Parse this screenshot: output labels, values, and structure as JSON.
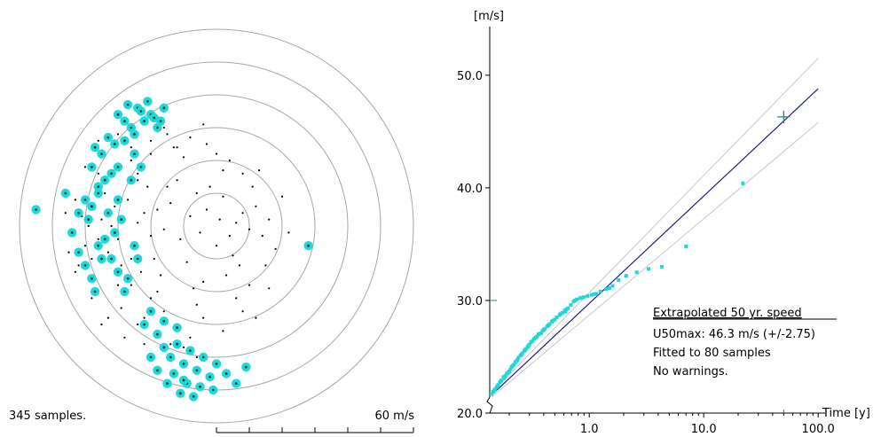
{
  "chart_data": [
    {
      "type": "scatter",
      "subtype": "polar",
      "status_label": "345 samples.",
      "scale_label": "60 m/s",
      "ring_step": 10,
      "ring_count": 6,
      "max_radius": 60,
      "series": [
        {
          "color": "#000000",
          "points": [
            [
              1,
              2
            ],
            [
              4,
              -3
            ],
            [
              -3,
              5
            ],
            [
              6,
              1
            ],
            [
              0,
              -6
            ],
            [
              8,
              4
            ],
            [
              -5,
              -2
            ],
            [
              2,
              9
            ],
            [
              10,
              -1
            ],
            [
              -8,
              3
            ],
            [
              5,
              -9
            ],
            [
              -2,
              12
            ],
            [
              12,
              6
            ],
            [
              -11,
              -4
            ],
            [
              7,
              -12
            ],
            [
              14,
              -3
            ],
            [
              -6,
              10
            ],
            [
              3,
              -15
            ],
            [
              -14,
              7
            ],
            [
              16,
              2
            ],
            [
              -9,
              -11
            ],
            [
              11,
              12
            ],
            [
              -16,
              -1
            ],
            [
              2,
              17
            ],
            [
              -4,
              -17
            ],
            [
              18,
              -7
            ],
            [
              -18,
              5
            ],
            [
              8,
              16
            ],
            [
              -12,
              14
            ],
            [
              15,
              -12
            ],
            [
              -20,
              -3
            ],
            [
              4,
              20
            ],
            [
              -7,
              -19
            ],
            [
              20,
              9
            ],
            [
              -15,
              12
            ],
            [
              10,
              -18
            ],
            [
              -22,
              4
            ],
            [
              0,
              22
            ],
            [
              -19,
              -10
            ],
            [
              13,
              17
            ],
            [
              -24,
              1
            ],
            [
              6,
              -22
            ],
            [
              -17,
              -15
            ],
            [
              22,
              -2
            ],
            [
              -10,
              21
            ],
            [
              -25,
              -6
            ],
            [
              -3,
              25
            ],
            [
              -21,
              12
            ],
            [
              16,
              -19
            ],
            [
              -26,
              -10
            ],
            [
              -6,
              -24
            ],
            [
              -28,
              2
            ],
            [
              -13,
              24
            ],
            [
              -23,
              -14
            ],
            [
              8,
              -26
            ],
            [
              -27,
              8
            ],
            [
              -18,
              -20
            ],
            [
              -30,
              -4
            ],
            [
              -4,
              -28
            ],
            [
              -24,
              16
            ],
            [
              -29,
              -12
            ],
            [
              12,
              -28
            ],
            [
              -32,
              0
            ],
            [
              -8,
              27
            ],
            [
              -26,
              -18
            ],
            [
              -31,
              6
            ],
            [
              -16,
              -26
            ],
            [
              -33,
              -8
            ],
            [
              -20,
              22
            ],
            [
              -12,
              -30
            ],
            [
              -35,
              2
            ],
            [
              -28,
              -20
            ],
            [
              -34,
              10
            ],
            [
              2,
              -32
            ],
            [
              -36,
              -4
            ],
            [
              -22,
              -28
            ],
            [
              -15,
              28
            ],
            [
              -37,
              6
            ],
            [
              -30,
              -18
            ],
            [
              -8,
              -34
            ],
            [
              -38,
              -10
            ],
            [
              -26,
              20
            ],
            [
              -39,
              0
            ],
            [
              -18,
              -32
            ],
            [
              -33,
              14
            ],
            [
              -40,
              -6
            ],
            [
              -4,
              31
            ],
            [
              -29,
              -25
            ],
            [
              -41,
              3
            ],
            [
              -24,
              -30
            ],
            [
              -36,
              16
            ],
            [
              -10,
              -37
            ],
            [
              -42,
              -12
            ],
            [
              -20,
              26
            ],
            [
              -38,
              -22
            ],
            [
              -14,
              -36
            ],
            [
              -30,
              28
            ],
            [
              -43,
              8
            ],
            [
              -33,
              -28
            ],
            [
              -44,
              -2
            ],
            [
              -16,
              30
            ],
            [
              -40,
              18
            ],
            [
              -6,
              -40
            ],
            [
              -46,
              4
            ],
            [
              -28,
              -34
            ],
            [
              -35,
              -30
            ],
            [
              -26,
              24
            ],
            [
              -45,
              -8
            ],
            [
              -22,
              -36
            ],
            [
              -12,
              24
            ],
            [
              -43,
              -14
            ],
            [
              -20,
              -22
            ],
            [
              -24,
              14
            ],
            [
              -36,
              26
            ]
          ]
        },
        {
          "color": "#1fd8d8",
          "points": [
            [
              -22,
              32
            ],
            [
              -26,
              30
            ],
            [
              -20,
              34
            ],
            [
              -24,
              36
            ],
            [
              -18,
              30
            ],
            [
              -28,
              32
            ],
            [
              -16,
              36
            ],
            [
              -21,
              38
            ],
            [
              -25,
              28
            ],
            [
              -19,
              33
            ],
            [
              -30,
              34
            ],
            [
              -23,
              35
            ],
            [
              -27,
              37
            ],
            [
              -17,
              32
            ],
            [
              -33,
              27
            ],
            [
              -35,
              22
            ],
            [
              -37,
              24
            ],
            [
              -31,
              25
            ],
            [
              -38,
              18
            ],
            [
              -34,
              14
            ],
            [
              -36,
              12
            ],
            [
              -30,
              18
            ],
            [
              -32,
              16
            ],
            [
              -40,
              8
            ],
            [
              -42,
              4
            ],
            [
              -38,
              6
            ],
            [
              -36,
              10
            ],
            [
              -44,
              -2
            ],
            [
              -42,
              -8
            ],
            [
              -36,
              -6
            ],
            [
              -40,
              -12
            ],
            [
              -38,
              -16
            ],
            [
              -34,
              -4
            ],
            [
              -32,
              -10
            ],
            [
              -30,
              -14
            ],
            [
              -28,
              -20
            ],
            [
              -25,
              -6
            ],
            [
              -20,
              -26
            ],
            [
              -55,
              5
            ],
            [
              -46,
              10
            ],
            [
              -18,
              -33
            ],
            [
              -16,
              -37
            ],
            [
              -14,
              -40
            ],
            [
              -12,
              -36
            ],
            [
              -10,
              -42
            ],
            [
              -8,
              -38
            ],
            [
              -6,
              -44
            ],
            [
              -4,
              -40
            ],
            [
              -2,
              -46
            ],
            [
              -13,
              -45
            ],
            [
              -9,
              -48
            ],
            [
              -11,
              -51
            ],
            [
              -5,
              -49
            ],
            [
              0,
              -42
            ],
            [
              3,
              -45
            ],
            [
              6,
              -48
            ],
            [
              9,
              -43
            ],
            [
              -1,
              -50
            ],
            [
              -15,
              -48
            ],
            [
              -7,
              -52
            ],
            [
              28,
              -6
            ],
            [
              -33,
              4
            ],
            [
              -29,
              2
            ],
            [
              -35,
              -10
            ],
            [
              -27,
              -16
            ],
            [
              -25,
              22
            ],
            [
              -23,
              18
            ],
            [
              -31,
              -2
            ],
            [
              -37,
              -20
            ],
            [
              -39,
              2
            ],
            [
              -30,
              8
            ],
            [
              -28,
              26
            ],
            [
              -26,
              14
            ],
            [
              -24,
              -10
            ],
            [
              -22,
              -30
            ],
            [
              -20,
              -40
            ],
            [
              -18,
              -44
            ],
            [
              -16,
              -29
            ],
            [
              -12,
              -31
            ],
            [
              -10,
              -47
            ]
          ]
        }
      ]
    },
    {
      "type": "scatter",
      "ylabel": "[m/s]",
      "xlabel": "Time [y]",
      "xscale": "log",
      "xlim": [
        0.135,
        115
      ],
      "ylim": [
        20,
        55.5
      ],
      "x_ticks": [
        1.0,
        10.0,
        100.0
      ],
      "x_tick_labels": [
        "1.0",
        "10.0",
        "100.0"
      ],
      "y_ticks": [
        20,
        30,
        40,
        50
      ],
      "y_tick_labels": [
        "20.0",
        "30.0",
        "40.0",
        "50.0"
      ],
      "samples": {
        "color": "#1fd8d8",
        "points": [
          [
            0.14,
            21.7
          ],
          [
            0.145,
            21.9
          ],
          [
            0.15,
            22.1
          ],
          [
            0.155,
            22.3
          ],
          [
            0.16,
            22.5
          ],
          [
            0.165,
            22.7
          ],
          [
            0.17,
            22.9
          ],
          [
            0.18,
            23.1
          ],
          [
            0.185,
            23.3
          ],
          [
            0.19,
            23.5
          ],
          [
            0.2,
            23.7
          ],
          [
            0.205,
            23.9
          ],
          [
            0.21,
            24.1
          ],
          [
            0.22,
            24.3
          ],
          [
            0.225,
            24.5
          ],
          [
            0.235,
            24.7
          ],
          [
            0.24,
            24.9
          ],
          [
            0.25,
            25.1
          ],
          [
            0.26,
            25.3
          ],
          [
            0.27,
            25.5
          ],
          [
            0.28,
            25.7
          ],
          [
            0.29,
            25.9
          ],
          [
            0.3,
            26.1
          ],
          [
            0.31,
            26.3
          ],
          [
            0.32,
            26.4
          ],
          [
            0.33,
            26.6
          ],
          [
            0.35,
            26.8
          ],
          [
            0.36,
            27.0
          ],
          [
            0.38,
            27.1
          ],
          [
            0.39,
            27.3
          ],
          [
            0.41,
            27.5
          ],
          [
            0.43,
            27.7
          ],
          [
            0.45,
            27.9
          ],
          [
            0.47,
            28.1
          ],
          [
            0.5,
            28.3
          ],
          [
            0.52,
            28.5
          ],
          [
            0.55,
            28.7
          ],
          [
            0.58,
            28.9
          ],
          [
            0.61,
            29.1
          ],
          [
            0.65,
            29.3
          ],
          [
            0.69,
            29.6
          ],
          [
            0.73,
            29.9
          ],
          [
            0.78,
            30.1
          ],
          [
            0.83,
            30.2
          ],
          [
            0.9,
            30.3
          ],
          [
            0.97,
            30.4
          ],
          [
            1.05,
            30.5
          ],
          [
            1.15,
            30.6
          ],
          [
            1.25,
            30.8
          ],
          [
            1.4,
            31.0
          ],
          [
            1.6,
            31.3
          ],
          [
            1.8,
            31.8
          ],
          [
            2.1,
            32.2
          ],
          [
            2.6,
            32.5
          ],
          [
            3.3,
            32.8
          ],
          [
            4.3,
            33.0
          ],
          [
            7.0,
            34.8
          ],
          [
            22.0,
            40.4
          ],
          [
            0.148,
            22.0
          ],
          [
            0.158,
            22.4
          ],
          [
            0.168,
            22.8
          ],
          [
            0.178,
            23.2
          ],
          [
            0.195,
            23.6
          ],
          [
            0.215,
            24.2
          ],
          [
            0.23,
            24.6
          ],
          [
            0.255,
            25.2
          ],
          [
            0.275,
            25.6
          ],
          [
            0.295,
            26.0
          ],
          [
            0.34,
            26.7
          ],
          [
            0.37,
            27.05
          ],
          [
            0.4,
            27.4
          ],
          [
            0.44,
            27.8
          ],
          [
            0.48,
            28.2
          ],
          [
            0.56,
            28.8
          ],
          [
            0.63,
            29.2
          ],
          [
            0.75,
            30.0
          ],
          [
            0.86,
            30.25
          ],
          [
            1.1,
            30.55
          ],
          [
            1.5,
            31.1
          ],
          [
            0.62,
            29.0
          ]
        ]
      },
      "fit": {
        "color": "#1e1e8c",
        "points": [
          [
            0.14,
            21.6
          ],
          [
            100,
            48.8
          ]
        ]
      },
      "confidence": {
        "color": "#c8c8c8",
        "upper": [
          [
            0.14,
            21.8
          ],
          [
            100,
            51.5
          ]
        ],
        "lower": [
          [
            0.14,
            21.4
          ],
          [
            100,
            45.8
          ]
        ]
      },
      "extrapolated_point": {
        "x": 50,
        "y": 46.3,
        "color": "#1f8a8a"
      },
      "annotations": {
        "heading": "Extrapolated 50 yr. speed",
        "line1": "U50max: 46.3 m/s (+/-2.75)",
        "line2": "Fitted to 80 samples",
        "line3": "No warnings."
      }
    }
  ]
}
